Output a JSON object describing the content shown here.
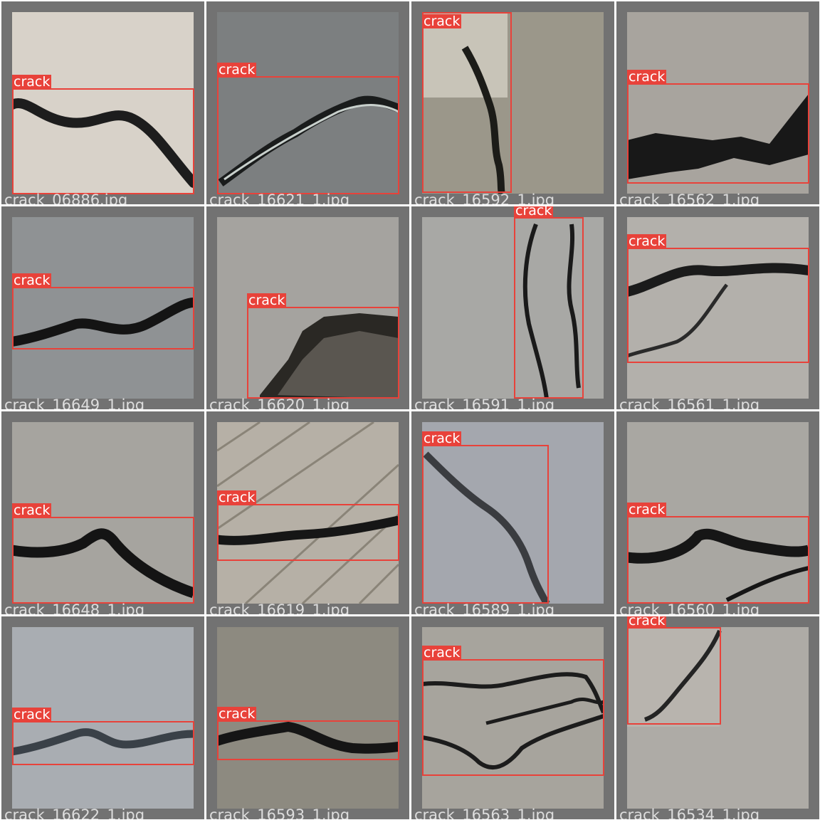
{
  "colors": {
    "box": "#e8423a",
    "frame": "#727272",
    "divider": "#ffffff"
  },
  "class_label": "crack",
  "tiles": [
    {
      "filename": "crack_06886.jpg",
      "label": "crack",
      "bg": "#d8d2c9",
      "crack": "#1d1d1d",
      "icon": "crack-photo"
    },
    {
      "filename": "crack_16621_1.jpg",
      "label": "crack",
      "bg": "#7c7f80",
      "crack": "#1a1c1c",
      "icon": "crack-photo"
    },
    {
      "filename": "crack_16592_1.jpg",
      "label": "crack",
      "bg": "#9b978a",
      "crack": "#1c1c18",
      "icon": "crack-photo"
    },
    {
      "filename": "crack_16562_1.jpg",
      "label": "crack",
      "bg": "#a8a49e",
      "crack": "#181818",
      "icon": "crack-photo"
    },
    {
      "filename": "crack_16649_1.jpg",
      "label": "crack",
      "bg": "#8f9294",
      "crack": "#141414",
      "icon": "crack-photo"
    },
    {
      "filename": "crack_16620_1.jpg",
      "label": "crack",
      "bg": "#a5a39f",
      "crack": "#2a2824",
      "icon": "crack-photo"
    },
    {
      "filename": "crack_16591_1.jpg",
      "label": "crack",
      "bg": "#a8a8a5",
      "crack": "#1a1a1a",
      "icon": "crack-photo"
    },
    {
      "filename": "crack_16561_1.jpg",
      "label": "crack",
      "bg": "#b3b0ab",
      "crack": "#1b1b1b",
      "icon": "crack-photo"
    },
    {
      "filename": "crack_16648_1.jpg",
      "label": "crack",
      "bg": "#a6a49f",
      "crack": "#141414",
      "icon": "crack-photo"
    },
    {
      "filename": "crack_16619_1.jpg",
      "label": "crack",
      "bg": "#b6b0a6",
      "crack": "#161616",
      "icon": "crack-photo"
    },
    {
      "filename": "crack_16589_1.jpg",
      "label": "crack",
      "bg": "#a4a7ae",
      "crack": "#3a3c40",
      "icon": "crack-photo"
    },
    {
      "filename": "crack_16560_1.jpg",
      "label": "crack",
      "bg": "#a9a7a2",
      "crack": "#161616",
      "icon": "crack-photo"
    },
    {
      "filename": "crack_16622_1.jpg",
      "label": "crack",
      "bg": "#a9adb2",
      "crack": "#3a4148",
      "icon": "crack-photo"
    },
    {
      "filename": "crack_16593_1.jpg",
      "label": "crack",
      "bg": "#8d8a80",
      "crack": "#151515",
      "icon": "crack-photo"
    },
    {
      "filename": "crack_16563_1.jpg",
      "label": "crack",
      "bg": "#a7a49d",
      "crack": "#1c1c1c",
      "icon": "crack-photo"
    },
    {
      "filename": "crack_16534_1.jpg",
      "label": "crack",
      "bg": "#aeaba6",
      "crack": "#242424",
      "icon": "crack-photo"
    }
  ]
}
